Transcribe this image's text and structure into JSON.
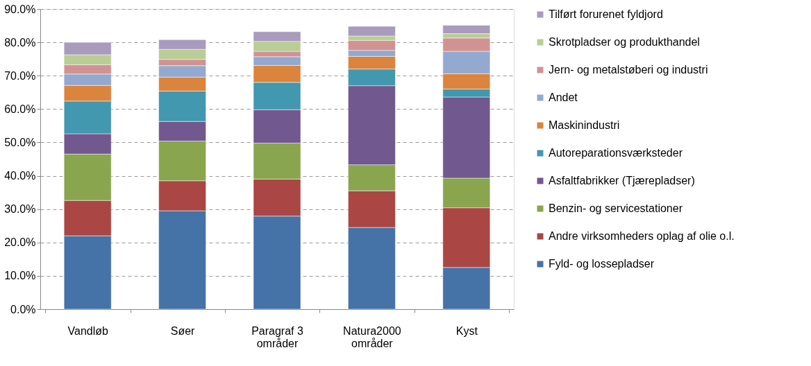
{
  "chart_data": {
    "type": "bar",
    "stacked": true,
    "categories": [
      "Vandløb",
      "Søer",
      "Paragraf 3 områder",
      "Natura2000 områder",
      "Kyst"
    ],
    "series": [
      {
        "name": "Fyld- og lossepladser",
        "color": "#4572a7",
        "values": [
          22.0,
          29.5,
          27.9,
          24.5,
          12.5
        ]
      },
      {
        "name": "Andre virksomheders oplag af olie o.l.",
        "color": "#aa4643",
        "values": [
          10.6,
          9.0,
          11.1,
          11.0,
          17.9
        ]
      },
      {
        "name": "Benzin- og servicestationer",
        "color": "#89a54e",
        "values": [
          13.9,
          11.9,
          10.8,
          7.8,
          8.9
        ]
      },
      {
        "name": "Asfaltfabrikker (Tjærepladser)",
        "color": "#71588f",
        "values": [
          6.1,
          5.9,
          10.0,
          23.7,
          24.3
        ]
      },
      {
        "name": "Autoreparationsværksteder",
        "color": "#4198af",
        "values": [
          9.8,
          9.1,
          8.2,
          5.0,
          2.4
        ]
      },
      {
        "name": "Maskinindustri",
        "color": "#db843d",
        "values": [
          4.7,
          4.2,
          5.1,
          3.8,
          4.6
        ]
      },
      {
        "name": "Andet",
        "color": "#93a9cf",
        "values": [
          3.4,
          3.4,
          2.6,
          1.8,
          6.7
        ]
      },
      {
        "name": "Jern- og metalstøberi og industri",
        "color": "#d19392",
        "values": [
          2.8,
          1.9,
          1.6,
          3.0,
          4.0
        ]
      },
      {
        "name": "Skrotpladser og produkthandel",
        "color": "#b9cd96",
        "values": [
          3.0,
          3.0,
          3.0,
          1.3,
          1.3
        ]
      },
      {
        "name": "Tilført forurenet fyldjord",
        "color": "#a99bbd",
        "values": [
          3.7,
          2.9,
          2.9,
          2.9,
          2.5
        ]
      }
    ],
    "ylim": [
      0,
      90
    ],
    "yticks": [
      {
        "value": 0,
        "label": "0.0%"
      },
      {
        "value": 10,
        "label": "10.0%"
      },
      {
        "value": 20,
        "label": "20.0%"
      },
      {
        "value": 30,
        "label": "30.0%"
      },
      {
        "value": 40,
        "label": "40.0%"
      },
      {
        "value": 50,
        "label": "50.0%"
      },
      {
        "value": 60,
        "label": "60.0%"
      },
      {
        "value": 70,
        "label": "70.0%"
      },
      {
        "value": 80,
        "label": "80.0%"
      },
      {
        "value": 90,
        "label": "90.0%"
      }
    ],
    "grid": "y",
    "legend": "right"
  }
}
